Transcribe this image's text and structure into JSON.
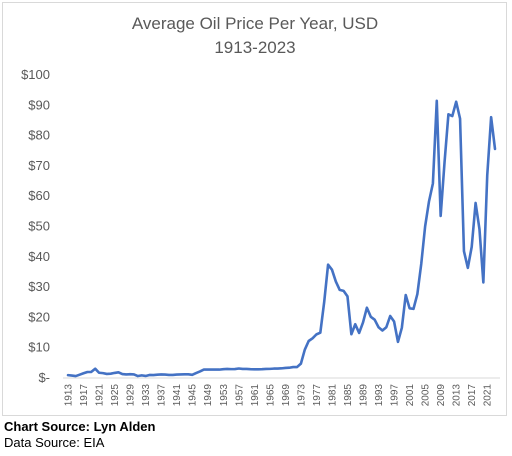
{
  "chart_data": {
    "type": "line",
    "title": "Average Oil Price Per Year, USD",
    "subtitle": "1913-2023",
    "xlabel": "",
    "ylabel": "",
    "ylim": [
      0,
      100
    ],
    "y_ticks": [
      "$-",
      "$10",
      "$20",
      "$30",
      "$40",
      "$50",
      "$60",
      "$70",
      "$80",
      "$90",
      "$100"
    ],
    "x_ticks": [
      "1913",
      "1917",
      "1921",
      "1925",
      "1929",
      "1933",
      "1937",
      "1941",
      "1945",
      "1949",
      "1953",
      "1957",
      "1961",
      "1965",
      "1969",
      "1973",
      "1977",
      "1981",
      "1985",
      "1989",
      "1993",
      "1997",
      "2001",
      "2005",
      "2009",
      "2013",
      "2017",
      "2021"
    ],
    "grid": false,
    "legend": "none",
    "line_color": "#4472c4",
    "series": [
      {
        "x": [
          1913,
          1914,
          1915,
          1916,
          1917,
          1918,
          1919,
          1920,
          1921,
          1922,
          1923,
          1924,
          1925,
          1926,
          1927,
          1928,
          1929,
          1930,
          1931,
          1932,
          1933,
          1934,
          1935,
          1936,
          1937,
          1938,
          1939,
          1940,
          1941,
          1942,
          1943,
          1944,
          1945,
          1946,
          1947,
          1948,
          1949,
          1950,
          1951,
          1952,
          1953,
          1954,
          1955,
          1956,
          1957,
          1958,
          1959,
          1960,
          1961,
          1962,
          1963,
          1964,
          1965,
          1966,
          1967,
          1968,
          1969,
          1970,
          1971,
          1972,
          1973,
          1974,
          1975,
          1976,
          1977,
          1978,
          1979,
          1980,
          1981,
          1982,
          1983,
          1984,
          1985,
          1986,
          1987,
          1988,
          1989,
          1990,
          1991,
          1992,
          1993,
          1994,
          1995,
          1996,
          1997,
          1998,
          1999,
          2000,
          2001,
          2002,
          2003,
          2004,
          2005,
          2006,
          2007,
          2008,
          2009,
          2010,
          2011,
          2012,
          2013,
          2014,
          2015,
          2016,
          2017,
          2018,
          2019,
          2020,
          2021,
          2022,
          2023
        ],
        "values": [
          0.95,
          0.81,
          0.64,
          1.1,
          1.56,
          1.98,
          2.01,
          3.07,
          1.73,
          1.61,
          1.34,
          1.43,
          1.68,
          1.88,
          1.3,
          1.17,
          1.27,
          1.19,
          0.65,
          0.87,
          0.67,
          1.0,
          0.97,
          1.09,
          1.18,
          1.13,
          1.02,
          1.02,
          1.14,
          1.19,
          1.2,
          1.21,
          1.05,
          1.63,
          2.16,
          2.77,
          2.77,
          2.77,
          2.77,
          2.77,
          2.92,
          2.99,
          2.93,
          2.94,
          3.14,
          3.0,
          3.0,
          2.91,
          2.85,
          2.85,
          2.91,
          3.0,
          3.01,
          3.1,
          3.12,
          3.18,
          3.32,
          3.39,
          3.6,
          3.6,
          4.75,
          9.35,
          12.21,
          13.1,
          14.4,
          14.95,
          25.1,
          37.42,
          35.75,
          31.83,
          29.08,
          28.75,
          26.92,
          14.44,
          17.75,
          14.87,
          18.33,
          23.19,
          20.2,
          19.25,
          16.75,
          15.66,
          16.75,
          20.46,
          18.64,
          11.91,
          16.56,
          27.39,
          23.0,
          22.81,
          27.69,
          37.66,
          50.04,
          58.3,
          64.2,
          91.48,
          53.48,
          71.21,
          87.04,
          86.46,
          91.17,
          85.6,
          41.85,
          36.34,
          43.29,
          57.77,
          49.1,
          31.53,
          66.9,
          86.1,
          75.6
        ]
      }
    ]
  },
  "credits": {
    "source": "Chart Source: Lyn Alden",
    "data": "Data Source: EIA"
  }
}
